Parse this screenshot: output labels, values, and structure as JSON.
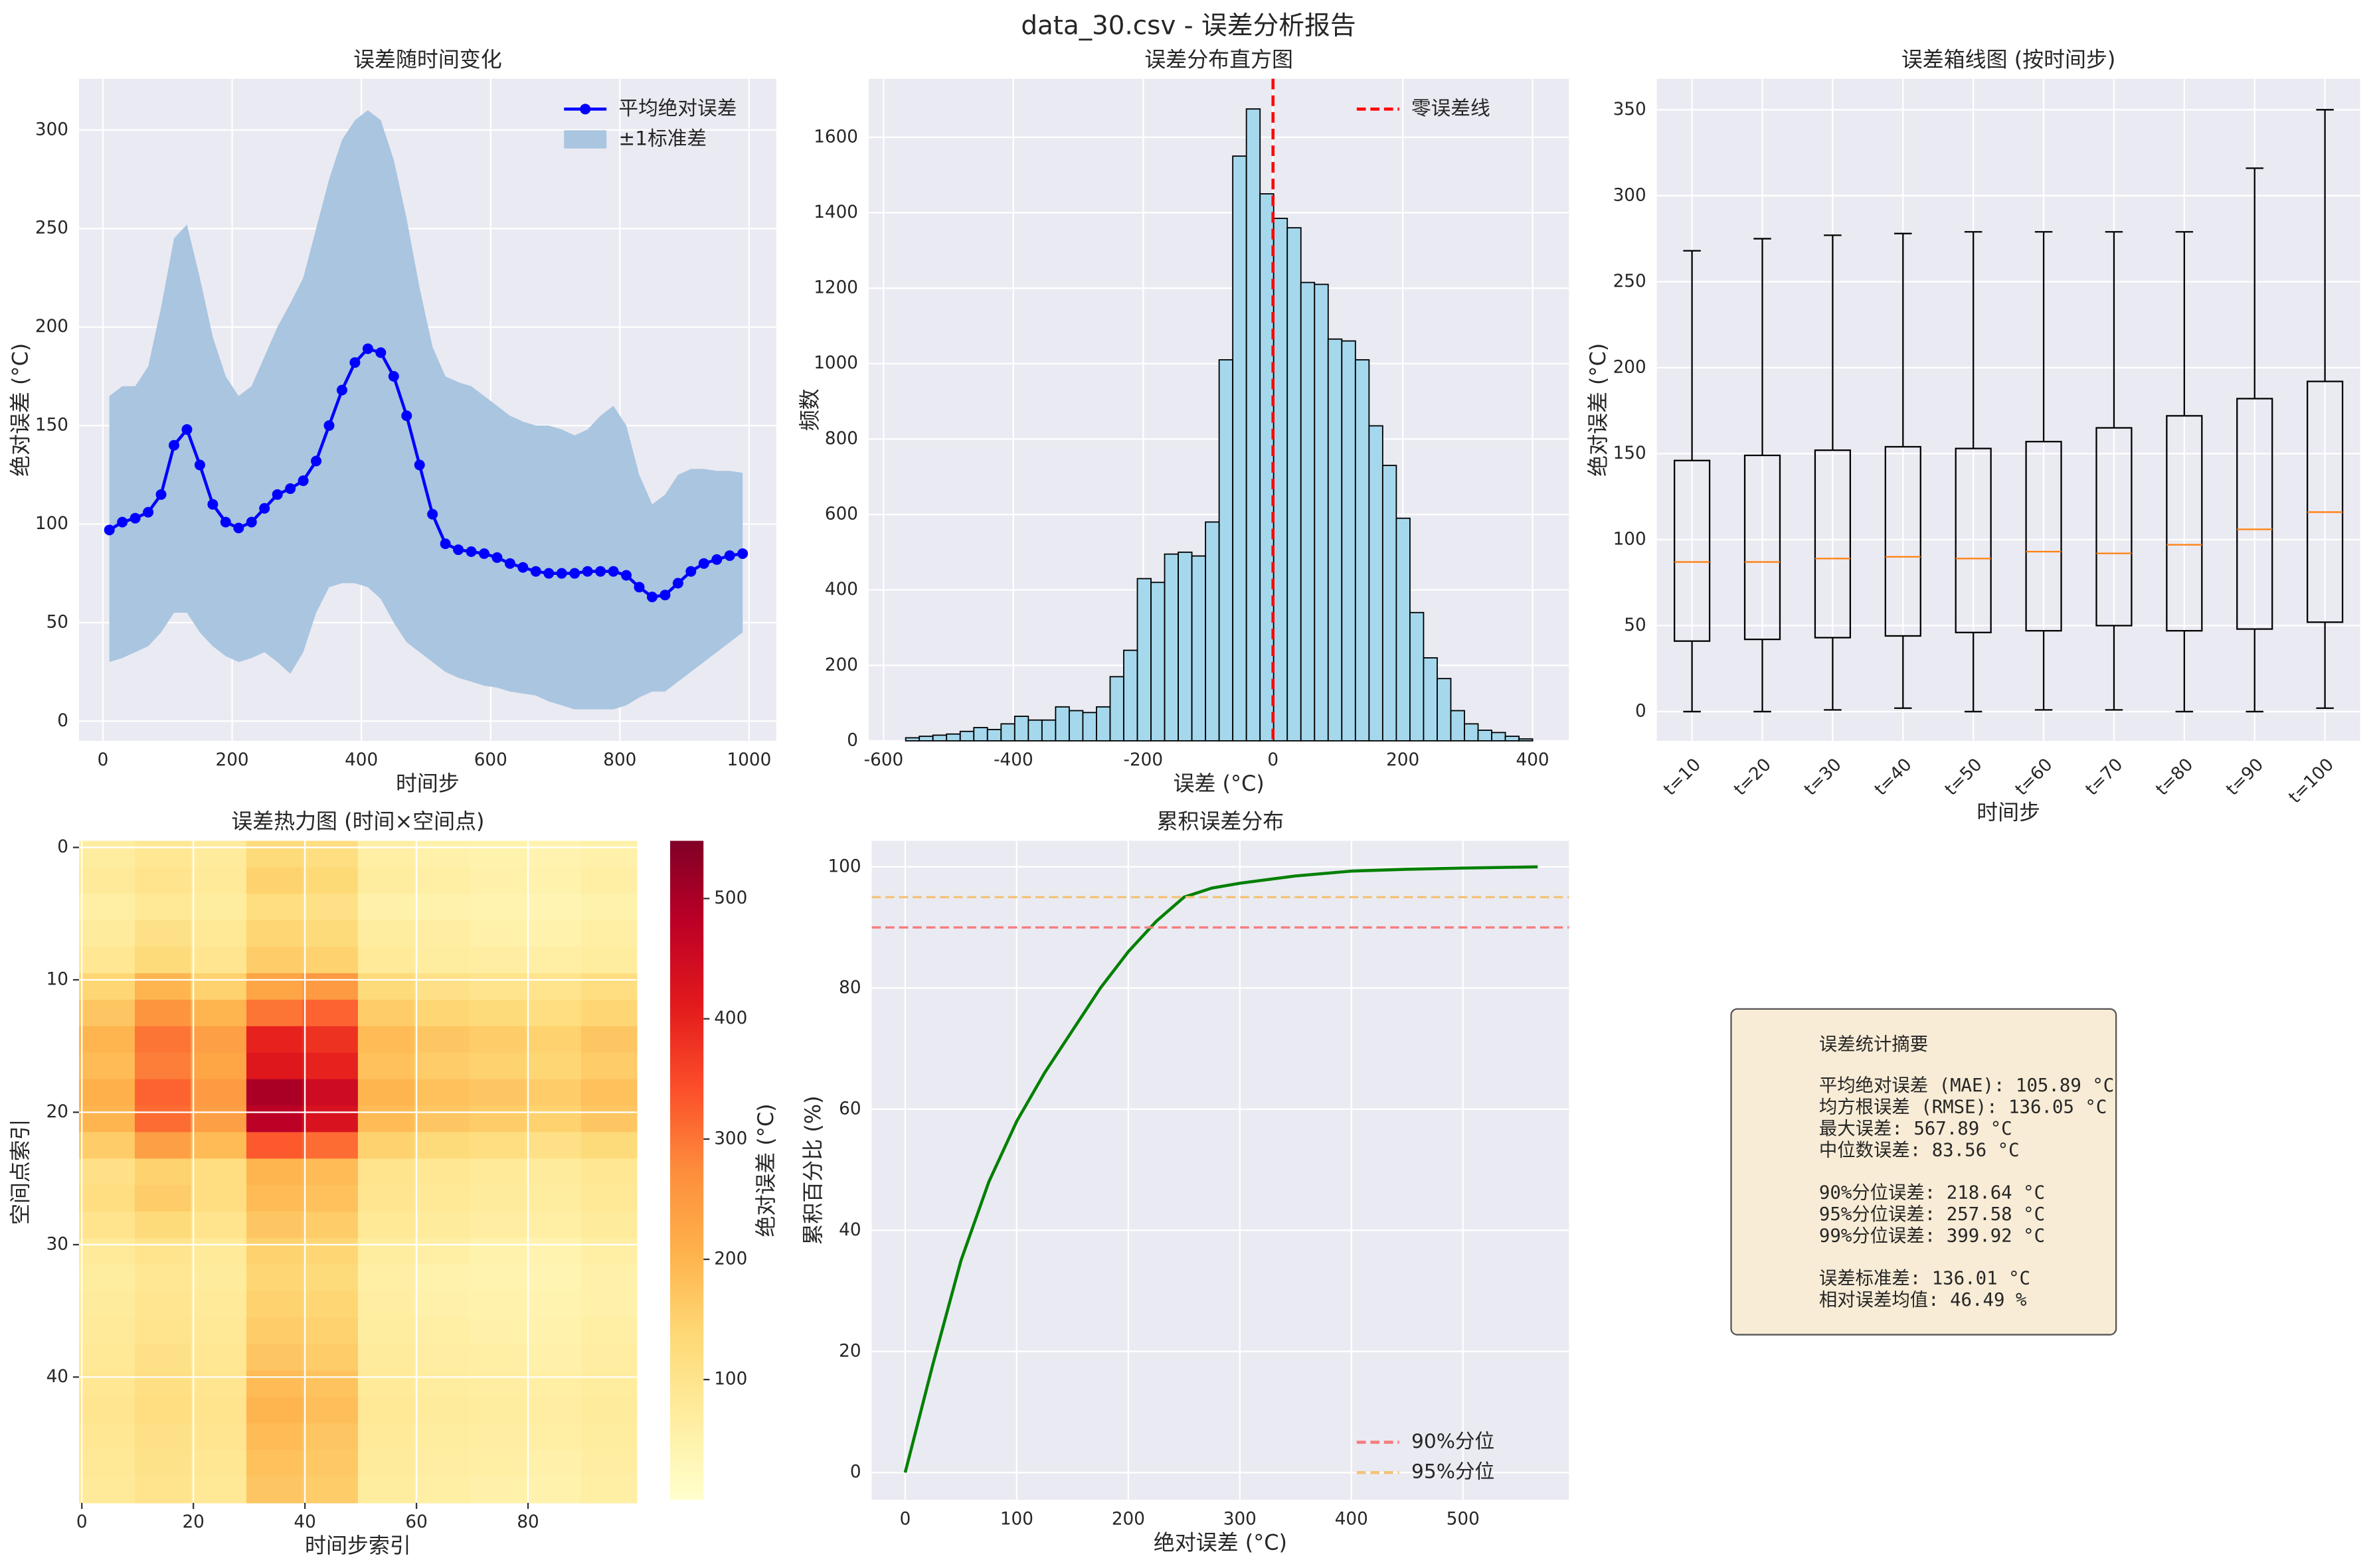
{
  "title": "data_30.csv - 误差分析报告",
  "chart_data": [
    {
      "type": "line",
      "title": "误差随时间变化",
      "xlabel": "时间步",
      "ylabel": "绝对误差 (°C)",
      "x": [
        10,
        30,
        50,
        70,
        90,
        110,
        130,
        150,
        170,
        190,
        210,
        230,
        250,
        270,
        290,
        310,
        330,
        350,
        370,
        390,
        410,
        430,
        450,
        470,
        490,
        510,
        530,
        550,
        570,
        590,
        610,
        630,
        650,
        670,
        690,
        710,
        730,
        750,
        770,
        790,
        810,
        830,
        850,
        870,
        890,
        910,
        930,
        950,
        970,
        990
      ],
      "series": [
        {
          "name": "平均绝对误差",
          "color": "#0000ff",
          "marker": true,
          "values": [
            97,
            101,
            103,
            106,
            115,
            140,
            148,
            130,
            110,
            101,
            98,
            101,
            108,
            115,
            118,
            122,
            132,
            150,
            168,
            182,
            189,
            187,
            175,
            155,
            130,
            105,
            90,
            87,
            86,
            85,
            83,
            80,
            78,
            76,
            75,
            75,
            75,
            76,
            76,
            76,
            74,
            68,
            63,
            64,
            70,
            76,
            80,
            82,
            84,
            85
          ]
        },
        {
          "name": "±1标准差",
          "color": "#a9c5e0",
          "upper": [
            165,
            170,
            170,
            180,
            210,
            245,
            252,
            225,
            195,
            175,
            165,
            170,
            185,
            200,
            212,
            225,
            250,
            275,
            295,
            305,
            310,
            305,
            285,
            255,
            220,
            190,
            175,
            172,
            170,
            165,
            160,
            155,
            152,
            150,
            150,
            148,
            145,
            148,
            155,
            160,
            150,
            125,
            110,
            115,
            125,
            128,
            128,
            127,
            127,
            126
          ],
          "lower": [
            30,
            32,
            35,
            38,
            45,
            55,
            55,
            45,
            38,
            33,
            30,
            32,
            35,
            30,
            24,
            35,
            55,
            68,
            70,
            70,
            68,
            62,
            50,
            40,
            35,
            30,
            25,
            22,
            20,
            18,
            17,
            15,
            14,
            13,
            10,
            8,
            6,
            6,
            6,
            6,
            8,
            12,
            15,
            15,
            20,
            25,
            30,
            35,
            40,
            45
          ]
        }
      ],
      "xlim": [
        -37,
        1042
      ],
      "ylim": [
        -10,
        326
      ],
      "xticks": [
        0,
        200,
        400,
        600,
        800,
        1000
      ],
      "yticks": [
        0,
        50,
        100,
        150,
        200,
        250,
        300
      ],
      "grid": true,
      "legend": "upper right"
    },
    {
      "type": "histogram",
      "title": "误差分布直方图",
      "xlabel": "误差 (°C)",
      "ylabel": "频数",
      "bins": [
        -566,
        -545,
        -524,
        -503,
        -482,
        -461,
        -440,
        -419,
        -398,
        -377,
        -356,
        -335,
        -314,
        -293,
        -272,
        -251,
        -230,
        -209,
        -188,
        -167,
        -146,
        -125,
        -104,
        -83,
        -62,
        -41,
        -20,
        1,
        22,
        43,
        64,
        85,
        106,
        127,
        148,
        169,
        190,
        211,
        232,
        253,
        274,
        295,
        316,
        337,
        358,
        379,
        400
      ],
      "values": [
        8,
        12,
        15,
        18,
        25,
        35,
        30,
        45,
        65,
        55,
        55,
        90,
        80,
        75,
        90,
        170,
        240,
        430,
        420,
        495,
        500,
        490,
        580,
        1010,
        1550,
        1675,
        1450,
        1385,
        1360,
        1215,
        1210,
        1065,
        1060,
        1010,
        835,
        730,
        590,
        340,
        220,
        165,
        80,
        45,
        28,
        22,
        12,
        5
      ],
      "color": "#a5d8ed",
      "edgecolor": "#000000",
      "vlines": [
        {
          "value": 0,
          "name": "零误差线",
          "color": "#ff0000"
        }
      ],
      "xlim": [
        -623,
        456
      ],
      "ylim": [
        0,
        1755
      ],
      "xticks": [
        -600,
        -400,
        -200,
        0,
        200,
        400
      ],
      "yticks": [
        0,
        200,
        400,
        600,
        800,
        1000,
        1200,
        1400,
        1600
      ],
      "grid": true,
      "legend": "upper right"
    },
    {
      "type": "box",
      "title": "误差箱线图 (按时间步)",
      "xlabel": "时间步",
      "ylabel": "绝对误差 (°C)",
      "categories": [
        "t=10",
        "t=20",
        "t=30",
        "t=40",
        "t=50",
        "t=60",
        "t=70",
        "t=80",
        "t=90",
        "t=100"
      ],
      "boxes": [
        {
          "low": 0,
          "q1": 41,
          "median": 87,
          "q3": 146,
          "high": 268
        },
        {
          "low": 0,
          "q1": 42,
          "median": 87,
          "q3": 149,
          "high": 275
        },
        {
          "low": 1,
          "q1": 43,
          "median": 89,
          "q3": 152,
          "high": 277
        },
        {
          "low": 2,
          "q1": 44,
          "median": 90,
          "q3": 154,
          "high": 278
        },
        {
          "low": 0,
          "q1": 46,
          "median": 89,
          "q3": 153,
          "high": 279
        },
        {
          "low": 1,
          "q1": 47,
          "median": 93,
          "q3": 157,
          "high": 279
        },
        {
          "low": 1,
          "q1": 50,
          "median": 92,
          "q3": 165,
          "high": 279
        },
        {
          "low": 0,
          "q1": 47,
          "median": 97,
          "q3": 172,
          "high": 279
        },
        {
          "low": 0,
          "q1": 48,
          "median": 106,
          "q3": 182,
          "high": 316
        },
        {
          "low": 2,
          "q1": 52,
          "median": 116,
          "q3": 192,
          "high": 350
        }
      ],
      "color": "#000000",
      "median_color": "#ff7f0e",
      "ylim": [
        -17,
        368
      ],
      "yticks": [
        0,
        50,
        100,
        150,
        200,
        250,
        300,
        350
      ],
      "grid": true
    },
    {
      "type": "heatmap",
      "title": "误差热力图 (时间×空间点)",
      "xlabel": "时间步索引",
      "ylabel": "空间点索引",
      "x_edges": [
        -0.5,
        9.5,
        19.5,
        29.5,
        39.5,
        49.5,
        59.5,
        69.5,
        79.5,
        89.5,
        99.5
      ],
      "y_edges": [
        -0.5,
        1.5,
        3.5,
        5.5,
        7.5,
        9.5,
        11.5,
        13.5,
        15.5,
        17.5,
        19.5,
        21.5,
        23.5,
        25.5,
        27.5,
        29.5,
        31.5,
        33.5,
        35.5,
        37.5,
        39.5,
        41.5,
        43.5,
        45.5,
        47.5,
        49.5
      ],
      "z": [
        [
          70,
          90,
          75,
          130,
          120,
          60,
          55,
          50,
          45,
          55
        ],
        [
          80,
          100,
          80,
          150,
          135,
          70,
          60,
          55,
          50,
          60
        ],
        [
          60,
          85,
          70,
          120,
          110,
          55,
          50,
          45,
          40,
          50
        ],
        [
          75,
          110,
          85,
          140,
          130,
          70,
          65,
          55,
          50,
          60
        ],
        [
          90,
          130,
          95,
          160,
          150,
          80,
          70,
          65,
          60,
          70
        ],
        [
          140,
          200,
          150,
          230,
          250,
          130,
          110,
          100,
          100,
          120
        ],
        [
          170,
          260,
          200,
          300,
          320,
          160,
          140,
          130,
          120,
          140
        ],
        [
          200,
          300,
          240,
          400,
          380,
          190,
          170,
          160,
          150,
          170
        ],
        [
          190,
          290,
          230,
          420,
          400,
          180,
          160,
          150,
          140,
          160
        ],
        [
          210,
          320,
          250,
          500,
          450,
          200,
          180,
          170,
          160,
          180
        ],
        [
          200,
          310,
          240,
          480,
          430,
          190,
          170,
          160,
          150,
          170
        ],
        [
          160,
          240,
          190,
          330,
          310,
          150,
          130,
          120,
          110,
          130
        ],
        [
          110,
          150,
          120,
          200,
          190,
          100,
          90,
          80,
          75,
          90
        ],
        [
          120,
          160,
          120,
          190,
          180,
          95,
          85,
          75,
          70,
          85
        ],
        [
          100,
          130,
          100,
          170,
          160,
          85,
          75,
          65,
          60,
          75
        ],
        [
          80,
          100,
          80,
          150,
          140,
          70,
          60,
          50,
          45,
          60
        ],
        [
          70,
          90,
          75,
          140,
          130,
          60,
          50,
          45,
          40,
          55
        ],
        [
          75,
          95,
          80,
          150,
          140,
          65,
          55,
          50,
          45,
          55
        ],
        [
          80,
          100,
          85,
          160,
          150,
          70,
          60,
          55,
          50,
          60
        ],
        [
          85,
          110,
          90,
          170,
          160,
          75,
          65,
          60,
          55,
          65
        ],
        [
          90,
          115,
          95,
          190,
          175,
          80,
          70,
          65,
          60,
          70
        ],
        [
          95,
          120,
          100,
          200,
          185,
          85,
          75,
          70,
          65,
          75
        ],
        [
          90,
          110,
          95,
          190,
          170,
          80,
          70,
          65,
          60,
          70
        ],
        [
          85,
          105,
          90,
          180,
          165,
          75,
          65,
          60,
          55,
          65
        ],
        [
          80,
          100,
          85,
          170,
          160,
          70,
          60,
          55,
          50,
          60
        ]
      ],
      "colormap": [
        "#ffffcc",
        "#ffeda0",
        "#fed976",
        "#feb24c",
        "#fd8d3c",
        "#fc4e2a",
        "#e31a1c",
        "#bd0026",
        "#800026"
      ],
      "clim": [
        0,
        548
      ],
      "colorbar": {
        "label": "绝对误差 (°C)",
        "ticks": [
          100,
          200,
          300,
          400,
          500
        ]
      },
      "xlim": [
        -0.5,
        99.5
      ],
      "ylim": [
        49.5,
        -0.5
      ],
      "xticks": [
        0,
        20,
        40,
        60,
        80
      ],
      "yticks": [
        0,
        10,
        20,
        30,
        40
      ],
      "grid": true
    },
    {
      "type": "line",
      "title": "累积误差分布",
      "xlabel": "绝对误差 (°C)",
      "ylabel": "累积百分比 (%)",
      "x": [
        0,
        25,
        50,
        75,
        100,
        125,
        150,
        175,
        200,
        225,
        250,
        275,
        300,
        350,
        400,
        450,
        500,
        567
      ],
      "series": [
        {
          "name": null,
          "color": "#008000",
          "values": [
            0,
            18,
            35,
            48,
            58,
            66,
            73,
            80,
            86,
            91,
            95,
            96.5,
            97.3,
            98.5,
            99.3,
            99.6,
            99.8,
            100
          ]
        }
      ],
      "hlines": [
        {
          "value": 90,
          "name": "90%分位",
          "color": "#f47c7c"
        },
        {
          "value": 95,
          "name": "95%分位",
          "color": "#f3c378"
        }
      ],
      "xlim": [
        -30,
        595
      ],
      "ylim": [
        -4.5,
        104.3
      ],
      "xticks": [
        0,
        100,
        200,
        300,
        400,
        500
      ],
      "yticks": [
        0,
        20,
        40,
        60,
        80,
        100
      ],
      "grid": true,
      "legend": "lower right"
    }
  ],
  "summary": {
    "title": "误差统计摘要",
    "groups": [
      [
        "平均绝对误差 (MAE): 105.89 °C",
        "均方根误差 (RMSE): 136.05 °C",
        "最大误差: 567.89 °C",
        "中位数误差: 83.56 °C"
      ],
      [
        "90%分位误差: 218.64 °C",
        "95%分位误差: 257.58 °C",
        "99%分位误差: 399.92 °C"
      ],
      [
        "误差标准差: 136.01 °C",
        "相对误差均值: 46.49 %"
      ]
    ]
  }
}
